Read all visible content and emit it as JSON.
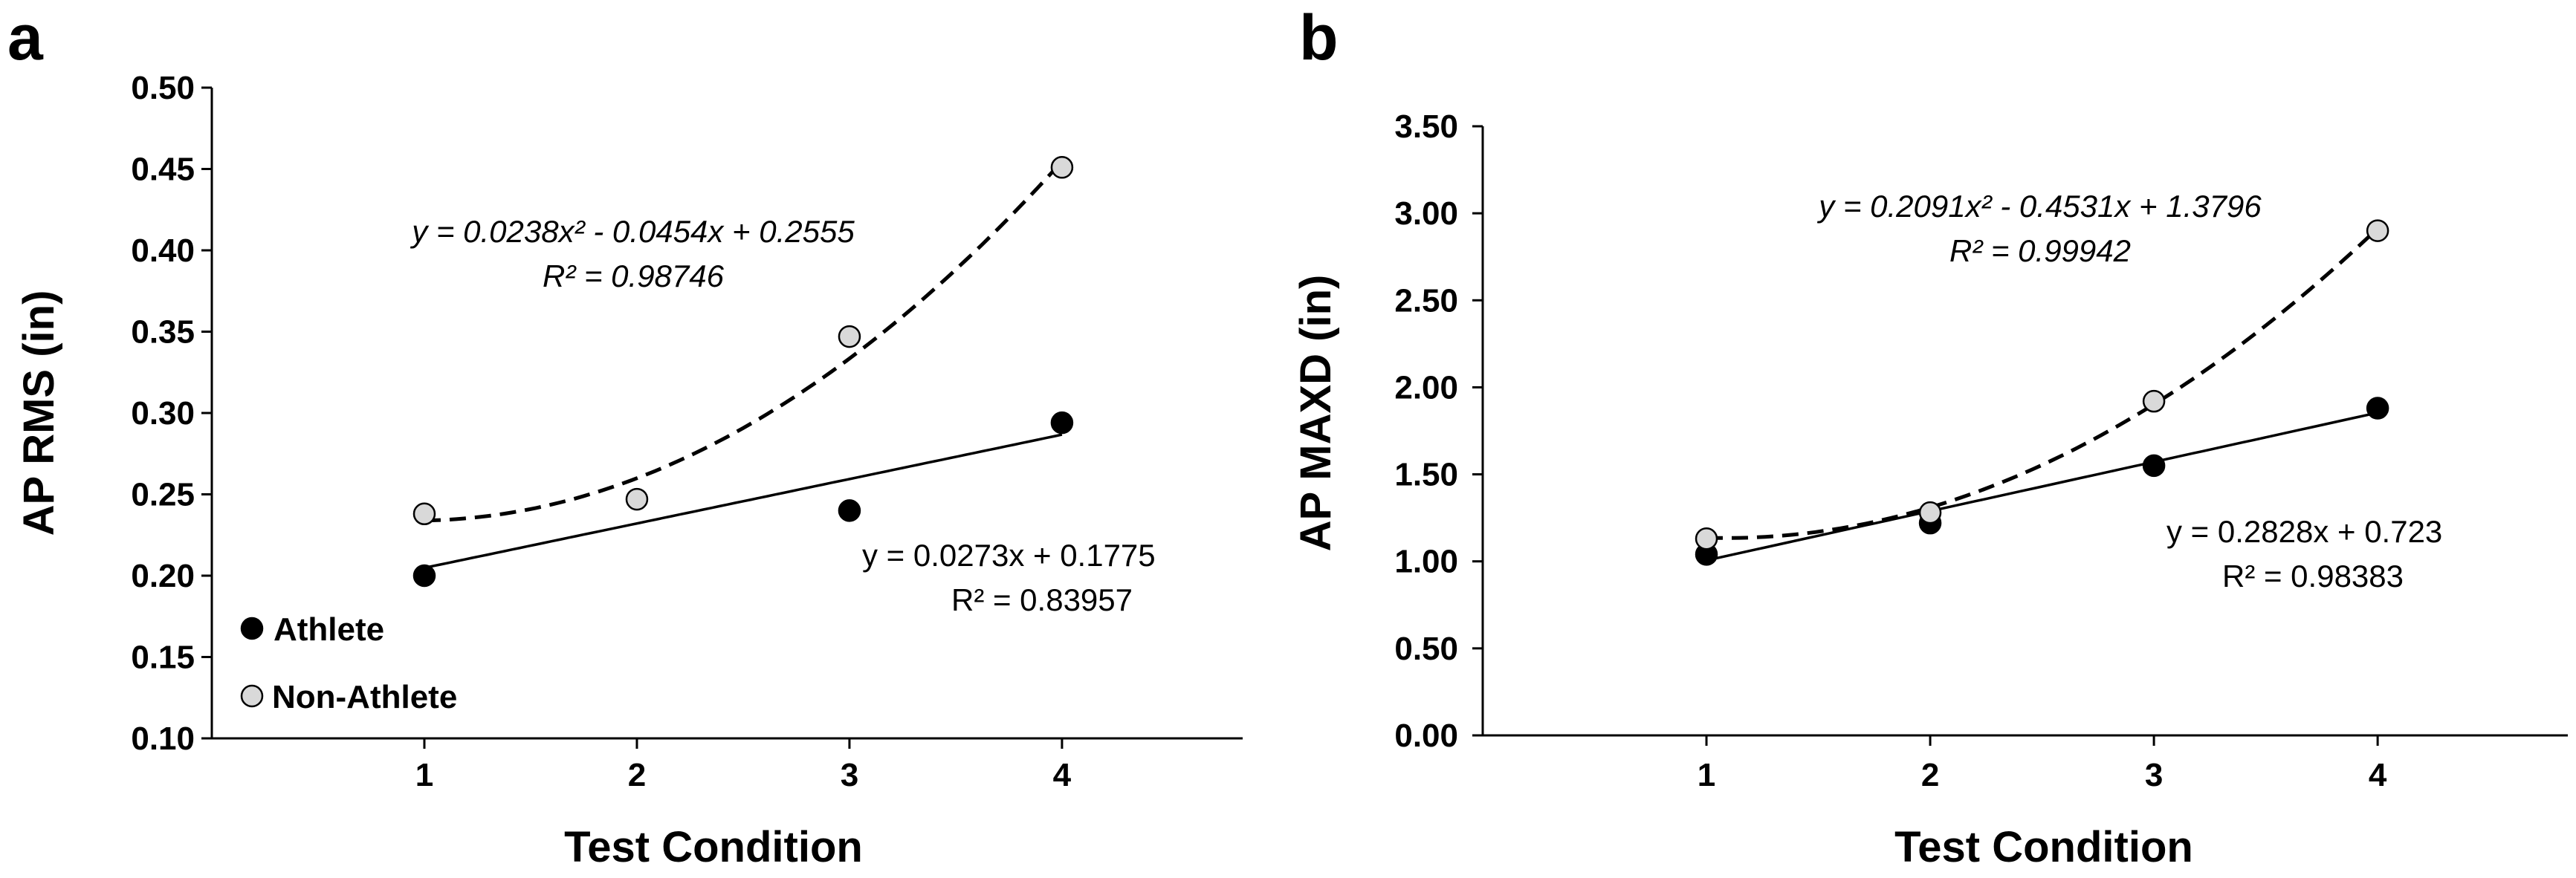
{
  "legend": {
    "athlete": "Athlete",
    "non_athlete": "Non-Athlete"
  },
  "colors": {
    "athlete": "#000000",
    "non_athlete": "#d9d9d9"
  },
  "chart_data": [
    {
      "panel": "a",
      "type": "scatter",
      "xlabel": "Test Condition",
      "ylabel": "AP RMS (in)",
      "xlim": [
        0.0,
        4.85
      ],
      "ylim": [
        0.1,
        0.5
      ],
      "x_ticks": [
        1,
        2,
        3,
        4
      ],
      "x_tick_labels": [
        "1",
        "2",
        "3",
        "4"
      ],
      "y_ticks": [
        0.1,
        0.15,
        0.2,
        0.25,
        0.3,
        0.35,
        0.4,
        0.45,
        0.5
      ],
      "y_tick_labels": [
        "0.10",
        "0.15",
        "0.20",
        "0.25",
        "0.30",
        "0.35",
        "0.40",
        "0.45",
        "0.50"
      ],
      "series": [
        {
          "name": "Athlete",
          "x": [
            1,
            2,
            3,
            4
          ],
          "values": [
            0.2,
            null,
            0.24,
            0.294
          ],
          "trend": {
            "type": "linear",
            "coef": [
              0.0273,
              0.1775
            ],
            "style": "solid"
          },
          "equation": "y = 0.0273x + 0.1775",
          "r2": "R² = 0.83957"
        },
        {
          "name": "Non-Athlete",
          "x": [
            1,
            2,
            3,
            4
          ],
          "values": [
            0.238,
            0.247,
            0.347,
            0.451
          ],
          "trend": {
            "type": "poly2",
            "coef": [
              0.0238,
              -0.0454,
              0.2555
            ],
            "style": "dashed"
          },
          "equation": "y = 0.0238x² - 0.0454x + 0.2555",
          "r2": "R² = 0.98746"
        }
      ]
    },
    {
      "panel": "b",
      "type": "scatter",
      "xlabel": "Test Condition",
      "ylabel": "AP MAXD (in)",
      "xlim": [
        0.0,
        4.85
      ],
      "ylim": [
        0.0,
        3.5
      ],
      "x_ticks": [
        1,
        2,
        3,
        4
      ],
      "x_tick_labels": [
        "1",
        "2",
        "3",
        "4"
      ],
      "y_ticks": [
        0.0,
        0.5,
        1.0,
        1.5,
        2.0,
        2.5,
        3.0,
        3.5
      ],
      "y_tick_labels": [
        "0.00",
        "0.50",
        "1.00",
        "1.50",
        "2.00",
        "2.50",
        "3.00",
        "3.50"
      ],
      "series": [
        {
          "name": "Athlete",
          "x": [
            1,
            2,
            3,
            4
          ],
          "values": [
            1.04,
            1.22,
            1.55,
            1.88
          ],
          "trend": {
            "type": "linear",
            "coef": [
              0.2828,
              0.723
            ],
            "style": "solid"
          },
          "equation": "y = 0.2828x + 0.723",
          "r2": "R² = 0.98383"
        },
        {
          "name": "Non-Athlete",
          "x": [
            1,
            2,
            3,
            4
          ],
          "values": [
            1.13,
            1.28,
            1.92,
            2.9
          ],
          "trend": {
            "type": "poly2",
            "coef": [
              0.2091,
              -0.4531,
              1.3796
            ],
            "style": "dashed"
          },
          "equation": "y = 0.2091x² - 0.4531x + 1.3796",
          "r2": "R² = 0.99942"
        }
      ]
    }
  ]
}
